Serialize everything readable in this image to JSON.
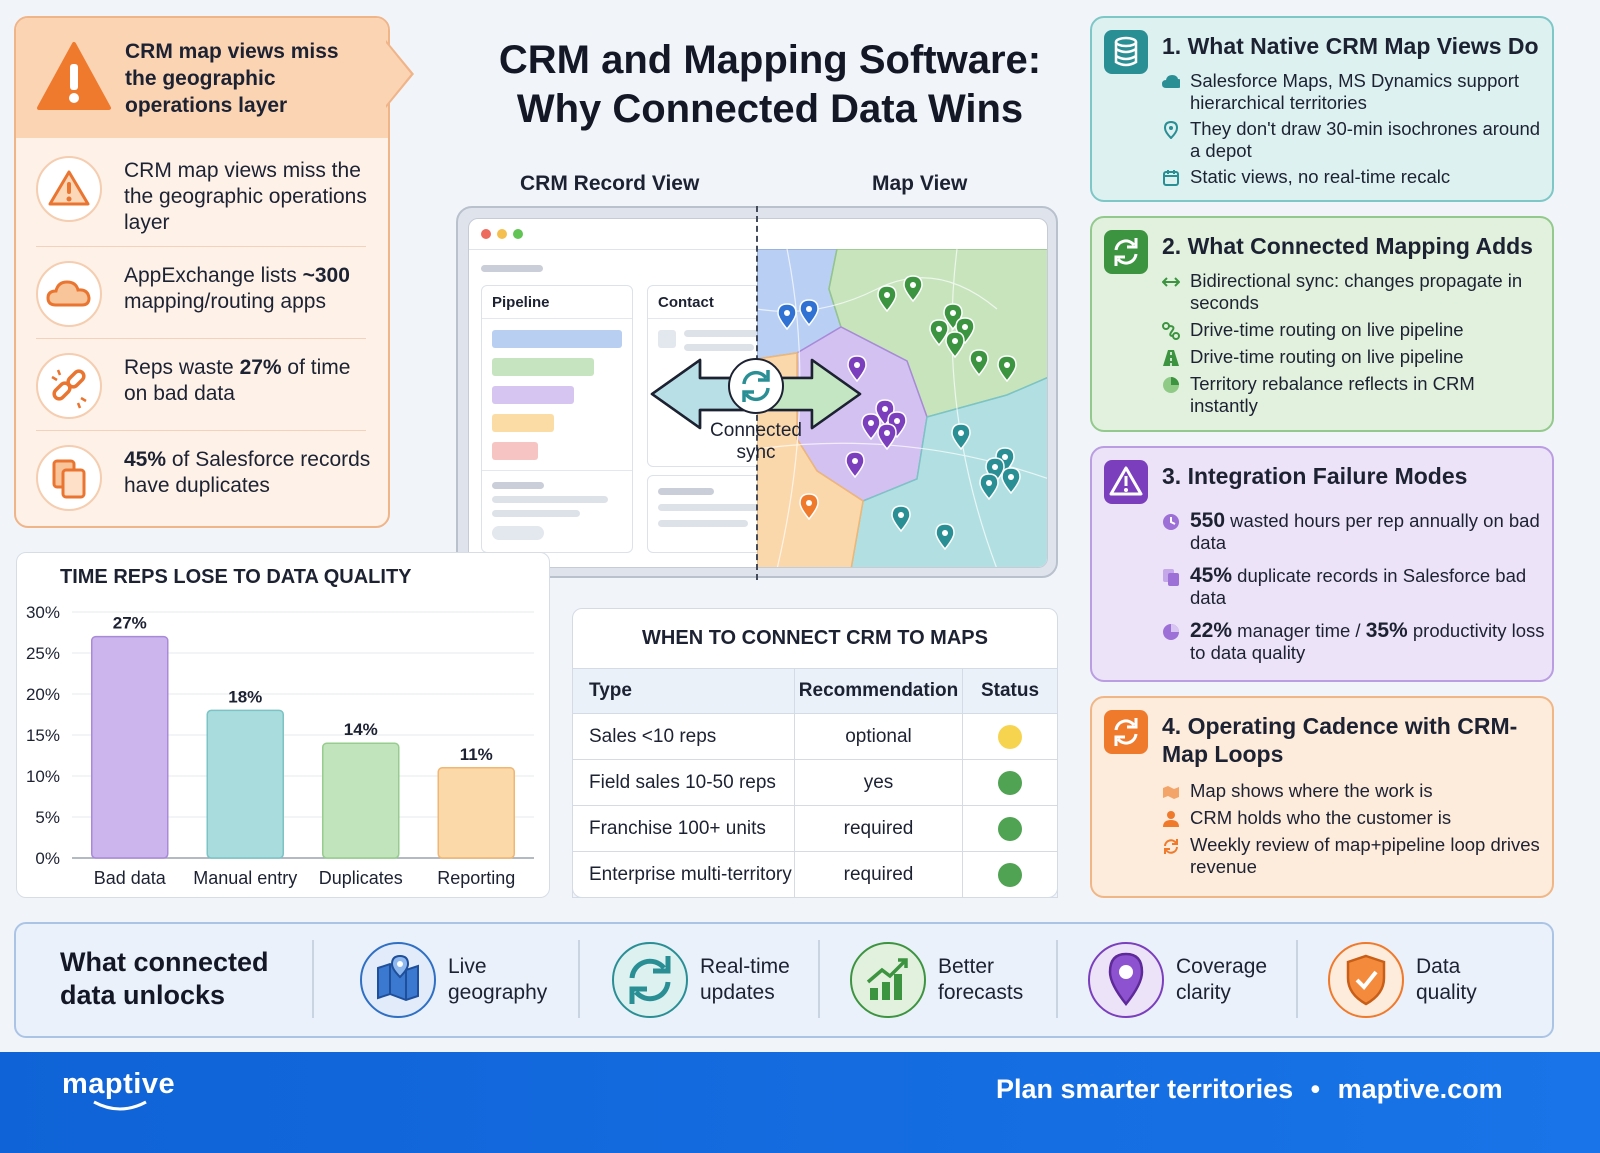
{
  "title": {
    "line1": "CRM and Mapping Software:",
    "line2": "Why Connected Data Wins"
  },
  "left_panel": {
    "header": "CRM map views miss the geographic operations layer",
    "items": [
      {
        "icon": "warning-icon",
        "html": "CRM map views miss the the geographic operations layer"
      },
      {
        "icon": "cloud-icon",
        "pre": "AppExchange lists ",
        "bold": "~300",
        "post": " mapping/routing apps"
      },
      {
        "icon": "broken-link-icon",
        "pre": "Reps waste ",
        "bold": "27%",
        "post": " of time on bad data"
      },
      {
        "bold": "45%",
        "pre": "",
        "post": " of Salesforce records have duplicates",
        "icon": "duplicate-icon"
      }
    ]
  },
  "diagram": {
    "crm_label": "CRM Record View",
    "map_label": "Map View",
    "pipeline_label": "Pipeline",
    "contact_label": "Contact",
    "sync_label_1": "Connected",
    "sync_label_2": "sync"
  },
  "chart_data": {
    "type": "bar",
    "title": "TIME REPS LOSE TO DATA QUALITY",
    "categories": [
      "Bad data",
      "Manual entry",
      "Duplicates",
      "Reporting"
    ],
    "values": [
      27,
      18,
      14,
      11
    ],
    "data_labels": [
      "27%",
      "18%",
      "14%",
      "11%"
    ],
    "colors": [
      "#cbb5ec",
      "#a9dcdc",
      "#c2e4bc",
      "#fbd9a8"
    ],
    "borders": [
      "#a98ad8",
      "#7cc3c5",
      "#96cc8e",
      "#f0b673"
    ],
    "ylim": [
      0,
      30
    ],
    "yticks": [
      "0%",
      "5%",
      "10%",
      "15%",
      "20%",
      "25%",
      "30%"
    ],
    "grid": true
  },
  "table": {
    "title": "WHEN TO CONNECT CRM TO MAPS",
    "headers": [
      "Type",
      "Recommendation",
      "Status"
    ],
    "rows": [
      {
        "type": "Sales <10 reps",
        "rec": "optional",
        "status_color": "#f7d44f"
      },
      {
        "type": "Field sales 10-50 reps",
        "rec": "yes",
        "status_color": "#4fa352"
      },
      {
        "type": "Franchise 100+ units",
        "rec": "required",
        "status_color": "#4fa352"
      },
      {
        "type": "Enterprise multi-territory",
        "rec": "required",
        "status_color": "#4fa352"
      }
    ]
  },
  "right_panels": [
    {
      "title": "1. What Native CRM Map Views Do",
      "items": [
        {
          "text": "Salesforce Maps, MS Dynamics support hierarchical territories"
        },
        {
          "text": "They don't draw 30-min isochrones around a depot"
        },
        {
          "text": "Static views, no real-time recalc"
        }
      ]
    },
    {
      "title": "2. What Connected Mapping Adds",
      "items": [
        {
          "text": "Bidirectional sync: changes propagate in seconds"
        },
        {
          "text": "Drive-time routing on live pipeline"
        },
        {
          "text": "Drive-time routing on live pipeline"
        },
        {
          "text": "Territory rebalance reflects in CRM instantly"
        }
      ]
    },
    {
      "title": "3. Integration Failure Modes",
      "items": [
        {
          "b1": "550",
          "t1": " wasted hours per rep annually on bad data"
        },
        {
          "b1": "45%",
          "t1": " duplicate records in Salesforce bad data"
        },
        {
          "b1": "22%",
          "t1": " manager time / ",
          "b2": "35%",
          "t2": " productivity loss to data quality"
        }
      ]
    },
    {
      "title": "4. Operating Cadence with CRM-Map Loops",
      "items": [
        {
          "text": "Map shows where the work is"
        },
        {
          "text": "CRM holds who the customer is"
        },
        {
          "text": "Weekly review of map+pipeline loop drives revenue"
        }
      ]
    }
  ],
  "bottom": {
    "title": "What connected data unlocks",
    "items": [
      {
        "line1": "Live",
        "line2": "geography"
      },
      {
        "line1": "Real-time",
        "line2": "updates"
      },
      {
        "line1": "Better",
        "line2": "forecasts"
      },
      {
        "line1": "Coverage",
        "line2": "clarity"
      },
      {
        "line1": "Data",
        "line2": "quality"
      }
    ]
  },
  "footer": {
    "logo": "maptive",
    "tagline": "Plan smarter territories",
    "separator": "•",
    "url": "maptive.com"
  },
  "colors": {
    "footer_blue": "#1874e8",
    "orange": "#f07a2c",
    "teal": "#2a8f95",
    "green": "#3d9440",
    "purple": "#7b3fbe"
  }
}
